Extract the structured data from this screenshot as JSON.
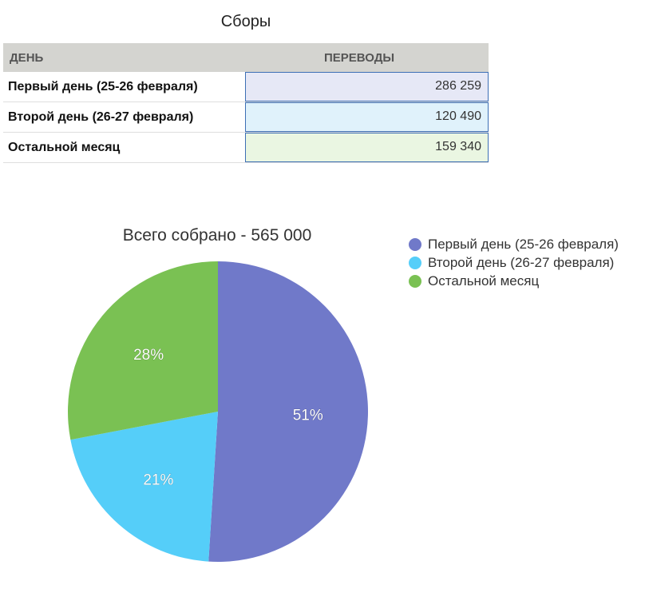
{
  "table": {
    "title": "Сборы",
    "headers": [
      "ДЕНЬ",
      "ПЕРЕВОДЫ"
    ],
    "rows": [
      {
        "day": "Первый день (25-26 февраля)",
        "amount": "286 259",
        "bg": "#e6e8f6"
      },
      {
        "day": "Второй день (26-27 февраля)",
        "amount": "120 490",
        "bg": "#e0f2fb"
      },
      {
        "day": "Остальной месяц",
        "amount": "159 340",
        "bg": "#eaf6e2"
      }
    ]
  },
  "chart_data": {
    "type": "pie",
    "title": "Всего собрано - 565 000",
    "categories": [
      "Первый день (25-26 февраля)",
      "Второй день (26-27 февраля)",
      "Остальной месяц"
    ],
    "values": [
      51,
      21,
      28
    ],
    "labels": [
      "51%",
      "21%",
      "28%"
    ],
    "colors": [
      "#7079c9",
      "#55cef9",
      "#7ac153"
    ],
    "legend_position": "top-right"
  }
}
